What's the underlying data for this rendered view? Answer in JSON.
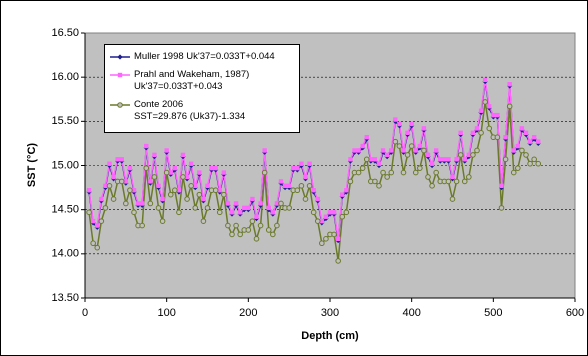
{
  "chart_data": {
    "type": "line",
    "xlabel": "Depth (cm)",
    "ylabel": "SST (°C)",
    "x": [
      5,
      10,
      15,
      20,
      25,
      30,
      35,
      40,
      45,
      50,
      55,
      60,
      65,
      70,
      75,
      80,
      85,
      90,
      95,
      100,
      105,
      110,
      115,
      120,
      125,
      130,
      135,
      140,
      145,
      150,
      155,
      160,
      165,
      170,
      175,
      180,
      185,
      190,
      195,
      200,
      205,
      210,
      215,
      220,
      225,
      230,
      235,
      240,
      245,
      250,
      255,
      260,
      265,
      270,
      275,
      280,
      285,
      290,
      295,
      300,
      305,
      310,
      315,
      320,
      325,
      330,
      335,
      340,
      345,
      350,
      355,
      360,
      365,
      370,
      375,
      380,
      385,
      390,
      395,
      400,
      405,
      410,
      415,
      420,
      425,
      430,
      435,
      440,
      445,
      450,
      455,
      460,
      465,
      470,
      475,
      480,
      485,
      490,
      495,
      500,
      505,
      510,
      515,
      520,
      525,
      530,
      535,
      540,
      545,
      550,
      555
    ],
    "series": [
      {
        "name": "Muller 1998 Uk'37=0.033T+0.044",
        "color": "#1f1f8f",
        "marker": "diamond",
        "values": [
          14.7,
          14.35,
          14.3,
          14.6,
          14.75,
          15.0,
          14.85,
          15.05,
          15.05,
          14.8,
          14.95,
          14.7,
          14.55,
          14.55,
          15.2,
          14.8,
          15.1,
          14.75,
          14.6,
          15.15,
          14.9,
          14.95,
          14.7,
          15.1,
          14.85,
          15.0,
          14.75,
          14.9,
          14.6,
          14.75,
          14.95,
          14.95,
          14.7,
          14.9,
          14.55,
          14.45,
          14.55,
          14.45,
          14.5,
          14.5,
          14.6,
          14.4,
          14.55,
          15.15,
          14.5,
          14.45,
          14.55,
          14.8,
          14.75,
          14.75,
          14.95,
          14.95,
          15.0,
          14.85,
          15.0,
          14.7,
          14.6,
          14.35,
          14.4,
          14.45,
          14.45,
          14.15,
          14.65,
          14.7,
          15.05,
          15.15,
          15.15,
          15.2,
          15.3,
          15.05,
          15.05,
          15.0,
          15.15,
          15.1,
          15.15,
          15.5,
          15.45,
          15.15,
          15.35,
          15.45,
          15.15,
          15.2,
          15.4,
          15.1,
          15.0,
          15.15,
          15.05,
          15.05,
          15.05,
          14.85,
          15.05,
          15.35,
          15.05,
          15.1,
          15.35,
          15.4,
          15.6,
          15.95,
          15.65,
          15.55,
          15.55,
          14.75,
          15.3,
          15.9,
          15.15,
          15.2,
          15.4,
          15.35,
          15.25,
          15.3,
          15.25
        ]
      },
      {
        "name": "Prahl and Wakeham, 1987)\nUk'37=0.033T+0.043",
        "color": "#ff66ff",
        "marker": "square",
        "values": [
          14.72,
          14.37,
          14.32,
          14.62,
          14.77,
          15.02,
          14.87,
          15.07,
          15.07,
          14.82,
          14.97,
          14.72,
          14.57,
          14.57,
          15.22,
          14.82,
          15.12,
          14.77,
          14.62,
          15.17,
          14.92,
          14.97,
          14.72,
          15.12,
          14.87,
          15.02,
          14.77,
          14.92,
          14.62,
          14.77,
          14.97,
          14.97,
          14.72,
          14.92,
          14.57,
          14.47,
          14.57,
          14.47,
          14.52,
          14.52,
          14.62,
          14.42,
          14.57,
          15.17,
          14.52,
          14.47,
          14.57,
          14.82,
          14.77,
          14.77,
          14.97,
          14.97,
          15.02,
          14.87,
          15.02,
          14.72,
          14.62,
          14.37,
          14.42,
          14.47,
          14.47,
          14.17,
          14.67,
          14.72,
          15.07,
          15.17,
          15.17,
          15.22,
          15.32,
          15.07,
          15.07,
          15.02,
          15.17,
          15.12,
          15.17,
          15.52,
          15.47,
          15.17,
          15.37,
          15.47,
          15.17,
          15.22,
          15.42,
          15.12,
          15.02,
          15.17,
          15.07,
          15.07,
          15.07,
          14.87,
          15.07,
          15.37,
          15.07,
          15.12,
          15.37,
          15.42,
          15.62,
          15.97,
          15.67,
          15.57,
          15.57,
          14.77,
          15.32,
          15.92,
          15.17,
          15.22,
          15.42,
          15.37,
          15.27,
          15.32,
          15.27
        ]
      },
      {
        "name": "Conte 2006\nSST=29.876 (Uk37)-1.334",
        "color": "#6b7a2a",
        "marker": "circle",
        "values": [
          14.47,
          14.12,
          14.07,
          14.37,
          14.52,
          14.77,
          14.62,
          14.82,
          14.82,
          14.57,
          14.72,
          14.47,
          14.32,
          14.32,
          14.97,
          14.57,
          14.87,
          14.52,
          14.37,
          14.92,
          14.67,
          14.72,
          14.47,
          14.87,
          14.62,
          14.77,
          14.52,
          14.67,
          14.37,
          14.52,
          14.72,
          14.72,
          14.47,
          14.67,
          14.32,
          14.22,
          14.32,
          14.22,
          14.27,
          14.27,
          14.37,
          14.17,
          14.32,
          14.92,
          14.27,
          14.22,
          14.32,
          14.57,
          14.52,
          14.52,
          14.72,
          14.72,
          14.77,
          14.62,
          14.77,
          14.47,
          14.37,
          14.12,
          14.17,
          14.22,
          14.22,
          13.92,
          14.42,
          14.47,
          14.82,
          14.92,
          14.92,
          14.97,
          15.07,
          14.82,
          14.82,
          14.77,
          14.92,
          14.87,
          14.92,
          15.27,
          15.22,
          14.92,
          15.12,
          15.22,
          14.92,
          14.97,
          15.17,
          14.87,
          14.77,
          14.92,
          14.82,
          14.82,
          14.82,
          14.62,
          14.82,
          15.12,
          14.82,
          14.87,
          15.12,
          15.17,
          15.37,
          15.72,
          15.42,
          15.32,
          15.32,
          14.52,
          15.07,
          15.67,
          14.92,
          14.97,
          15.17,
          15.12,
          15.02,
          15.07,
          15.02
        ]
      }
    ],
    "xlim": [
      0,
      600
    ],
    "xticks": [
      0,
      100,
      200,
      300,
      400,
      500,
      600
    ],
    "ylim": [
      13.5,
      16.5
    ],
    "yticks": [
      {
        "value": 13.5,
        "label": "13.50"
      },
      {
        "value": 14,
        "label": "14.00"
      },
      {
        "value": 14.5,
        "label": "14.50"
      },
      {
        "value": 15,
        "label": "15.00"
      },
      {
        "value": 15.5,
        "label": "15.50"
      },
      {
        "value": 16,
        "label": "16.00"
      },
      {
        "value": 16.5,
        "label": "16.50"
      }
    ],
    "grid": true,
    "legend": "top-left",
    "background": "#c0c0c0"
  }
}
